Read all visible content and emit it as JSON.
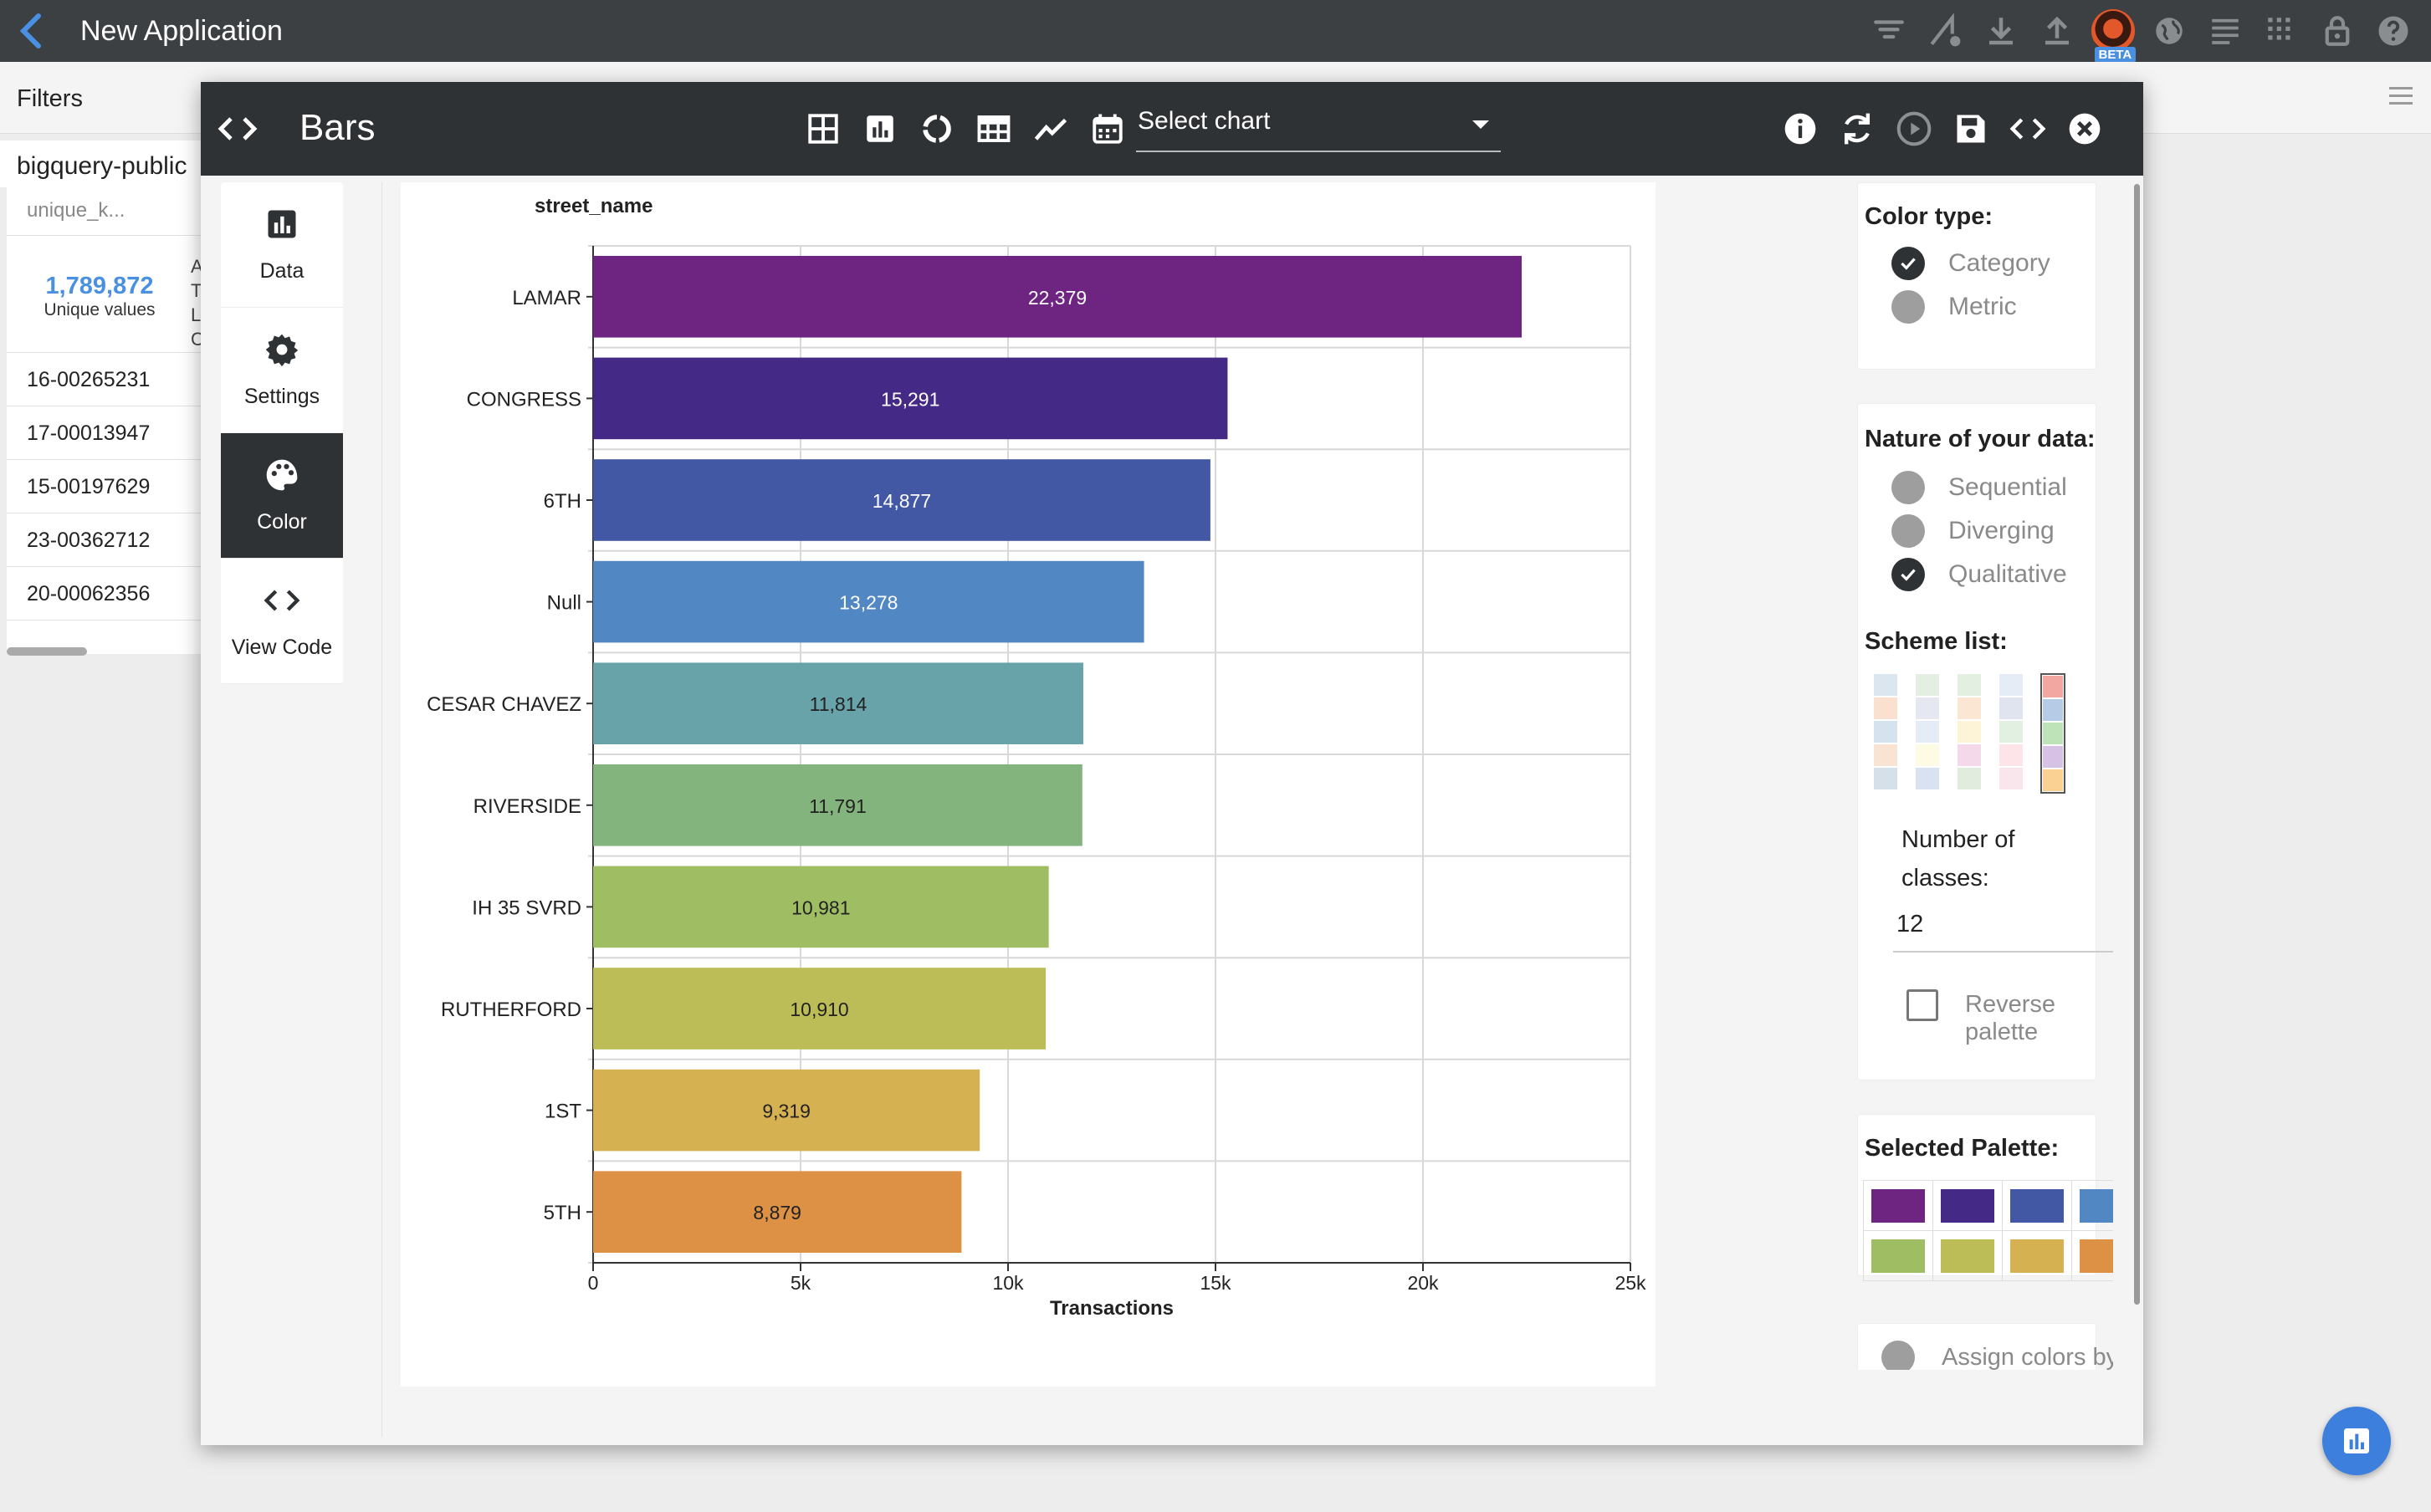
{
  "app": {
    "back_icon": "chevron-left-icon",
    "title": "New Application",
    "toolbar_icons": [
      "filter-icon",
      "filter-settings-icon",
      "download-icon",
      "upload-icon",
      "avatar",
      "globe-icon",
      "list-icon",
      "grid-icon",
      "lock-icon",
      "help-icon"
    ],
    "beta_badge": "BETA"
  },
  "background": {
    "filters_label": "Filters",
    "datasource": "bigquery-public",
    "column_header": "unique_k...",
    "unique_count": "1,789,872",
    "unique_label": "Unique values",
    "side_letters": [
      "A",
      "T",
      "L",
      "C"
    ],
    "rows": [
      "16-00265231",
      "17-00013947",
      "15-00197629",
      "23-00362712",
      "20-00062356"
    ]
  },
  "modal": {
    "title": "Bars",
    "chart_type_icons": [
      "table-grid-icon",
      "bar-chart-icon",
      "donut-icon",
      "table-icon",
      "line-chart-icon",
      "calendar-icon"
    ],
    "select_chart": "Select chart",
    "action_icons": [
      "info-icon",
      "refresh-icon",
      "play-icon",
      "save-icon",
      "code-icon",
      "close-icon"
    ],
    "tabs": [
      {
        "label": "Data",
        "icon": "bar-chart-icon"
      },
      {
        "label": "Settings",
        "icon": "gear-icon"
      },
      {
        "label": "Color",
        "icon": "palette-icon"
      },
      {
        "label": "View Code",
        "icon": "code-icon"
      }
    ],
    "active_tab": "Color"
  },
  "color_panel": {
    "color_type_title": "Color type:",
    "color_types": [
      {
        "label": "Category",
        "checked": true
      },
      {
        "label": "Metric",
        "checked": false
      }
    ],
    "nature_title": "Nature of your data:",
    "natures": [
      {
        "label": "Sequential",
        "checked": false
      },
      {
        "label": "Diverging",
        "checked": false
      },
      {
        "label": "Qualitative",
        "checked": true
      }
    ],
    "scheme_title": "Scheme list:",
    "schemes": [
      [
        "#dbe6ef",
        "#f9e0cf",
        "#d5e3ee",
        "#f9e4d3",
        "#d5e0e8"
      ],
      [
        "#e2efe1",
        "#e6e8f1",
        "#e4ecf5",
        "#fdfbe3",
        "#d9e2f1"
      ],
      [
        "#e2efe1",
        "#fbe6d4",
        "#fdf3d6",
        "#f3d9ea",
        "#e2ecde"
      ],
      [
        "#e6ecf5",
        "#dfe4ef",
        "#e2f0e1",
        "#fce4e8",
        "#f9e6ec"
      ],
      [
        "#f2a7a0",
        "#b6cbe6",
        "#bfe3b9",
        "#d6c2e4",
        "#fbd193"
      ]
    ],
    "classes_label": "Number of classes:",
    "classes_value": "12",
    "reverse_label": "Reverse palette",
    "selected_title": "Selected Palette:",
    "palette": [
      "#6e2582",
      "#442a86",
      "#4358a5",
      "#5187c3",
      "#67a3a9",
      "#83b47d",
      "#9fbd63",
      "#bcbd57",
      "#d6b151",
      "#dc9145",
      "#dc6136",
      "#d2322d"
    ],
    "assign_label": "Assign colors by value"
  },
  "chart_data": {
    "type": "bar",
    "orientation": "horizontal",
    "title": "street_name",
    "xlabel": "Transactions",
    "categories": [
      "LAMAR",
      "CONGRESS",
      "6TH",
      "Null",
      "CESAR CHAVEZ",
      "RIVERSIDE",
      "IH 35 SVRD",
      "RUTHERFORD",
      "1ST",
      "5TH"
    ],
    "values": [
      22379,
      15291,
      14877,
      13278,
      11814,
      11791,
      10981,
      10910,
      9319,
      8879
    ],
    "value_labels": [
      "22,379",
      "15,291",
      "14,877",
      "13,278",
      "11,814",
      "11,791",
      "10,981",
      "10,910",
      "9,319",
      "8,879"
    ],
    "colors": [
      "#6e2582",
      "#442a86",
      "#4358a5",
      "#5187c3",
      "#67a3a9",
      "#83b47d",
      "#9fbd63",
      "#bcbd57",
      "#d6b151",
      "#dc9145"
    ],
    "label_colors": [
      "#ffffff",
      "#ffffff",
      "#ffffff",
      "#ffffff",
      "#222222",
      "#222222",
      "#222222",
      "#222222",
      "#222222",
      "#222222"
    ],
    "xticks": [
      0,
      5000,
      10000,
      15000,
      20000,
      25000
    ],
    "xtick_labels": [
      "0",
      "5k",
      "10k",
      "15k",
      "20k",
      "25k"
    ],
    "xlim": [
      0,
      25000
    ],
    "grid": true
  }
}
